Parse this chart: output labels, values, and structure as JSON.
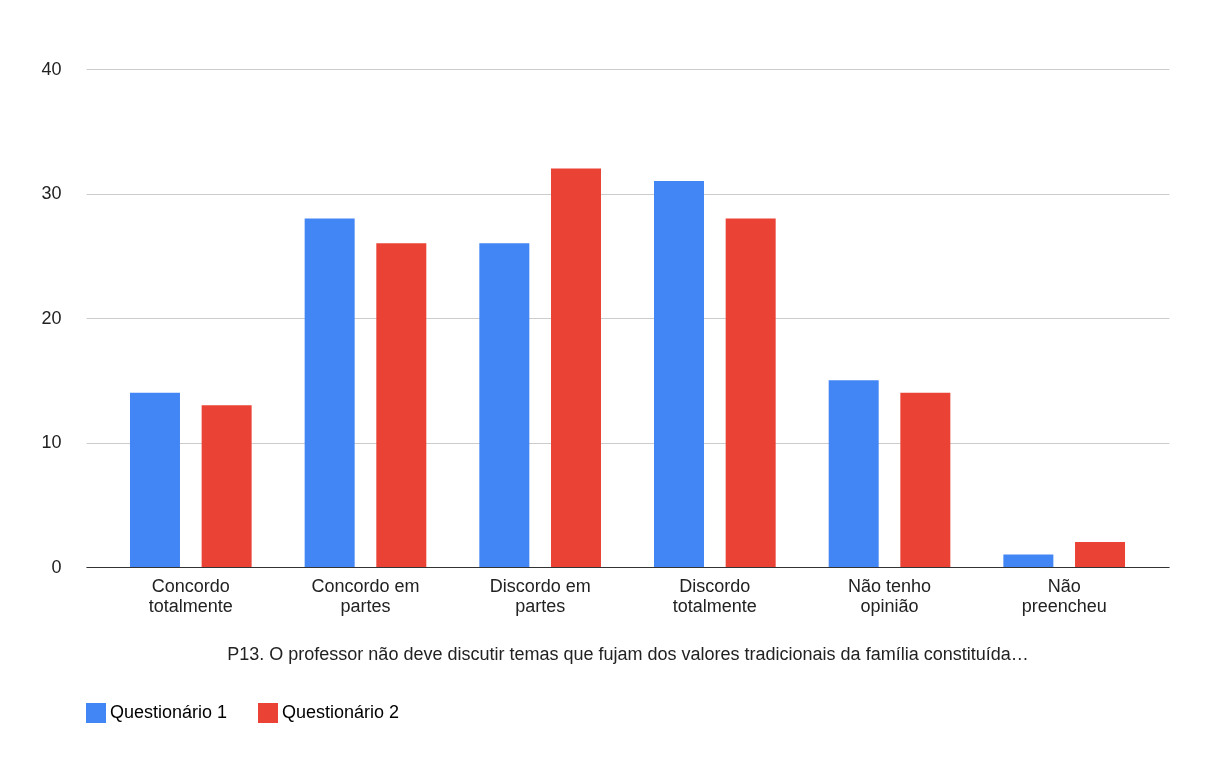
{
  "chart_data": {
    "type": "bar",
    "xlabel": "P13. O professor não deve discutir temas que fujam dos valores tradicionais da família constituída…",
    "categories": [
      "Concordo totalmente",
      "Concordo em partes",
      "Discordo em partes",
      "Discordo totalmente",
      "Não tenho opinião",
      "Não preencheu"
    ],
    "series": [
      {
        "name": "Questionário 1",
        "color": "#4285f4",
        "values": [
          14,
          28,
          26,
          31,
          15,
          1
        ]
      },
      {
        "name": "Questionário 2",
        "color": "#ea4335",
        "values": [
          13,
          26,
          32,
          28,
          14,
          2
        ]
      }
    ],
    "ylim": [
      0,
      40
    ],
    "yticks": [
      0,
      10,
      20,
      30,
      40
    ],
    "grid": "y",
    "legend": "bottom"
  }
}
